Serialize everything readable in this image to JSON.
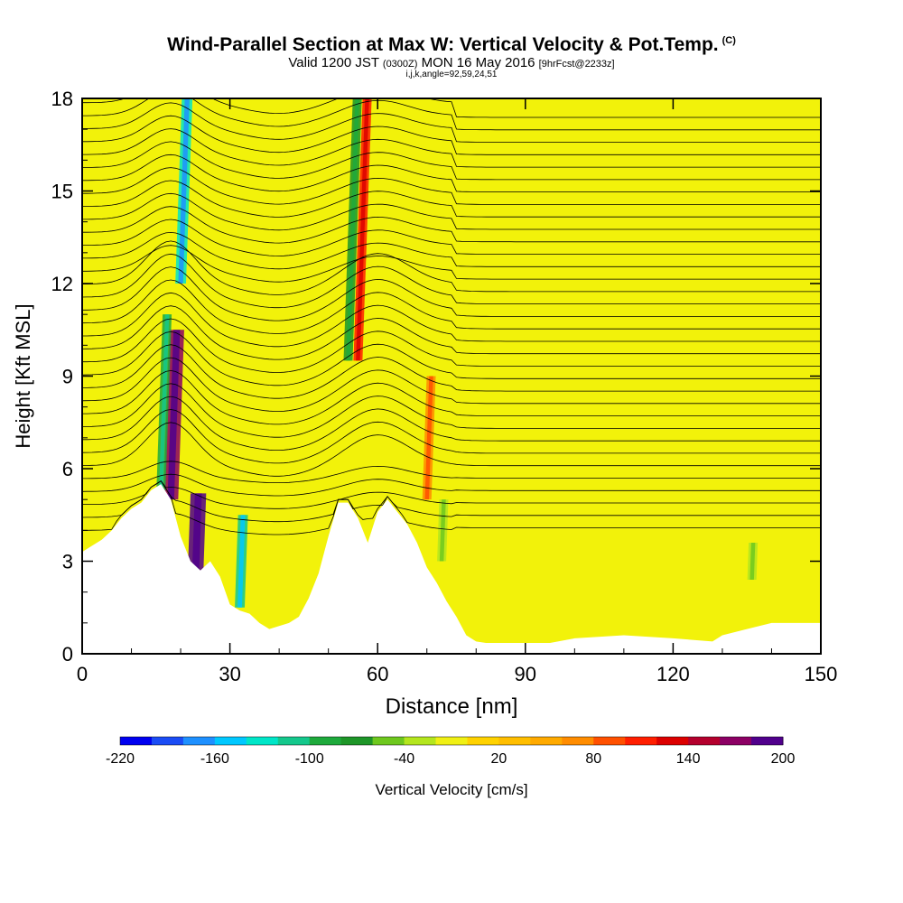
{
  "header": {
    "title": "Wind-Parallel Section at Max W: Vertical Velocity & Pot.Temp.",
    "copyright": "(C)",
    "valid_prefix": "Valid 1200 JST",
    "valid_utc": "(0300Z)",
    "valid_date": "MON 16 May 2016",
    "forecast": "[9hrFcst@2233z]",
    "indices": "i,j,k,angle=92,59,24,51"
  },
  "colors": {
    "background_field": "#f2f20a",
    "terrain": "#ffffff",
    "contour": "#000000",
    "scale": [
      "#0000f0",
      "#1a4cf5",
      "#1e90ff",
      "#00c8ff",
      "#00e6c8",
      "#14c88c",
      "#1eaa3c",
      "#1e9628",
      "#6ec81e",
      "#b4e61e",
      "#f0f014",
      "#ffd200",
      "#ffbe00",
      "#ffaa00",
      "#ff8c00",
      "#ff5000",
      "#ff1e00",
      "#dc0000",
      "#b4002d",
      "#8c0064",
      "#50008c"
    ]
  },
  "chart_data": {
    "type": "heatmap",
    "xlabel": "Distance [nm]",
    "ylabel": "Height [Kft MSL]",
    "xlim": [
      0,
      150
    ],
    "ylim": [
      0,
      18
    ],
    "xticks": [
      0,
      30,
      60,
      90,
      120,
      150
    ],
    "yticks": [
      0,
      3,
      6,
      9,
      12,
      15,
      18
    ],
    "colorbar": {
      "label": "Vertical Velocity [cm/s]",
      "range": [
        -220,
        200
      ],
      "tick_labels": [
        "-220",
        "-160",
        "-100",
        "-40",
        "20",
        "80",
        "140",
        "200"
      ]
    },
    "terrain_profile": [
      [
        0,
        3.3
      ],
      [
        2,
        3.5
      ],
      [
        4,
        3.7
      ],
      [
        6,
        4.0
      ],
      [
        8,
        4.4
      ],
      [
        10,
        4.7
      ],
      [
        12,
        4.9
      ],
      [
        14,
        5.3
      ],
      [
        16,
        5.5
      ],
      [
        18,
        5.0
      ],
      [
        20,
        3.8
      ],
      [
        22,
        3.0
      ],
      [
        24,
        2.7
      ],
      [
        26,
        3.0
      ],
      [
        28,
        2.5
      ],
      [
        30,
        1.6
      ],
      [
        32,
        1.4
      ],
      [
        34,
        1.3
      ],
      [
        36,
        1.0
      ],
      [
        38,
        0.8
      ],
      [
        40,
        0.9
      ],
      [
        42,
        1.0
      ],
      [
        44,
        1.2
      ],
      [
        46,
        1.8
      ],
      [
        48,
        2.6
      ],
      [
        50,
        3.8
      ],
      [
        52,
        4.9
      ],
      [
        54,
        4.9
      ],
      [
        56,
        4.4
      ],
      [
        58,
        3.6
      ],
      [
        60,
        4.6
      ],
      [
        62,
        5.0
      ],
      [
        64,
        4.6
      ],
      [
        66,
        4.2
      ],
      [
        68,
        3.6
      ],
      [
        70,
        2.8
      ],
      [
        72,
        2.3
      ],
      [
        74,
        1.7
      ],
      [
        76,
        1.2
      ],
      [
        78,
        0.6
      ],
      [
        80,
        0.4
      ],
      [
        82,
        0.35
      ],
      [
        90,
        0.35
      ],
      [
        95,
        0.35
      ],
      [
        100,
        0.5
      ],
      [
        110,
        0.6
      ],
      [
        120,
        0.5
      ],
      [
        128,
        0.4
      ],
      [
        130,
        0.6
      ],
      [
        135,
        0.8
      ],
      [
        140,
        1.0
      ],
      [
        145,
        1.0
      ],
      [
        150,
        1.0
      ]
    ],
    "velocity_features": [
      {
        "x": 18,
        "y": [
          5.0,
          10.5
        ],
        "w": 180,
        "kind": "updraft"
      },
      {
        "x": 23,
        "y": [
          2.5,
          5.2
        ],
        "w": 190,
        "kind": "updraft"
      },
      {
        "x": 16,
        "y": [
          5.3,
          11.0
        ],
        "w": -90,
        "kind": "downdraft"
      },
      {
        "x": 32,
        "y": [
          1.5,
          4.5
        ],
        "w": -120,
        "kind": "downdraft"
      },
      {
        "x": 20,
        "y": [
          12.0,
          18.0
        ],
        "w": -130,
        "kind": "downdraft"
      },
      {
        "x": 56,
        "y": [
          9.5,
          18.0
        ],
        "w": 110,
        "kind": "updraft"
      },
      {
        "x": 54,
        "y": [
          9.5,
          18.0
        ],
        "w": -70,
        "kind": "downdraft"
      },
      {
        "x": 70,
        "y": [
          5.0,
          9.0
        ],
        "w": 70,
        "kind": "updraft"
      },
      {
        "x": 73,
        "y": [
          3.0,
          5.0
        ],
        "w": -40,
        "kind": "downdraft"
      },
      {
        "x": 136,
        "y": [
          2.4,
          3.6
        ],
        "w": -40,
        "kind": "downdraft"
      }
    ]
  }
}
